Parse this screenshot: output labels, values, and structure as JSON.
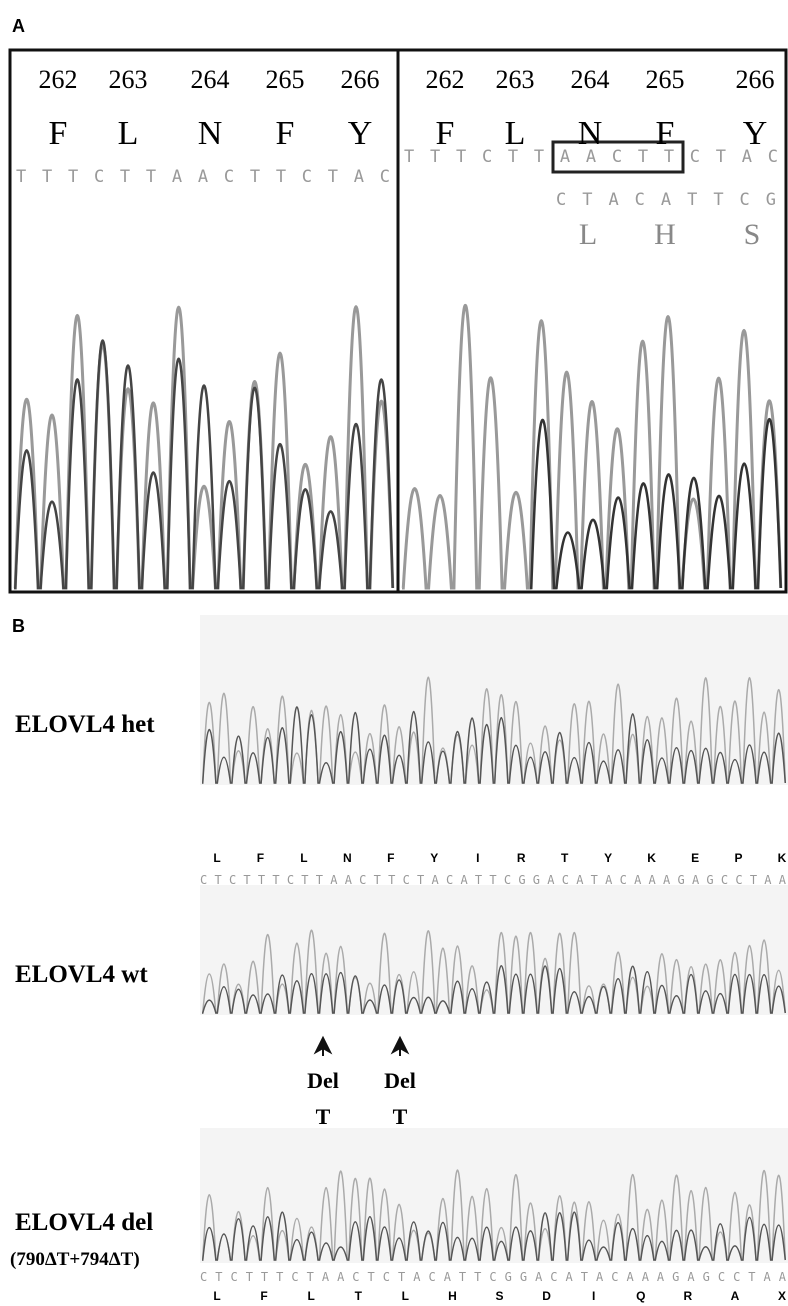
{
  "panel_a": {
    "label": "A",
    "left": {
      "positions": [
        "262",
        "263",
        "264",
        "265",
        "266"
      ],
      "amino_acids": [
        "F",
        "L",
        "N",
        "F",
        "Y"
      ],
      "sequence": "TTTCTTAACTTCTAC"
    },
    "right": {
      "positions": [
        "262",
        "263",
        "264",
        "265",
        "266"
      ],
      "amino_acids": [
        "F",
        "L",
        "N",
        "F",
        "Y"
      ],
      "sequence": "TTTCTTAACTTCTAC",
      "mutant_sequence": "CTACATTCG",
      "mutant_amino_acids": [
        "L",
        "H",
        "S"
      ]
    }
  },
  "panel_b": {
    "label": "B",
    "het": {
      "label": "ELOVL4  het"
    },
    "wt": {
      "label": "ELOVL4  wt",
      "amino_acids": [
        "L",
        "F",
        "L",
        "N",
        "F",
        "Y",
        "I",
        "R",
        "T",
        "Y",
        "K",
        "E",
        "P",
        "K"
      ],
      "sequence": "CTCTTTCTTAACTTCTACATTCGGACATACAAAGAGCCTAA"
    },
    "deletions": [
      {
        "label": "Del",
        "base": "T"
      },
      {
        "label": "Del",
        "base": "T"
      }
    ],
    "del": {
      "label": "ELOVL4 del",
      "sublabel": "(790ΔT+794ΔT)",
      "sequence": "CTCTTTCTAACTCTACATTCGGACATACAAAGAGCCTAA",
      "amino_acids": [
        "L",
        "F",
        "L",
        "T",
        "L",
        "H",
        "S",
        "D",
        "I",
        "Q",
        "R",
        "A",
        "X"
      ]
    }
  }
}
